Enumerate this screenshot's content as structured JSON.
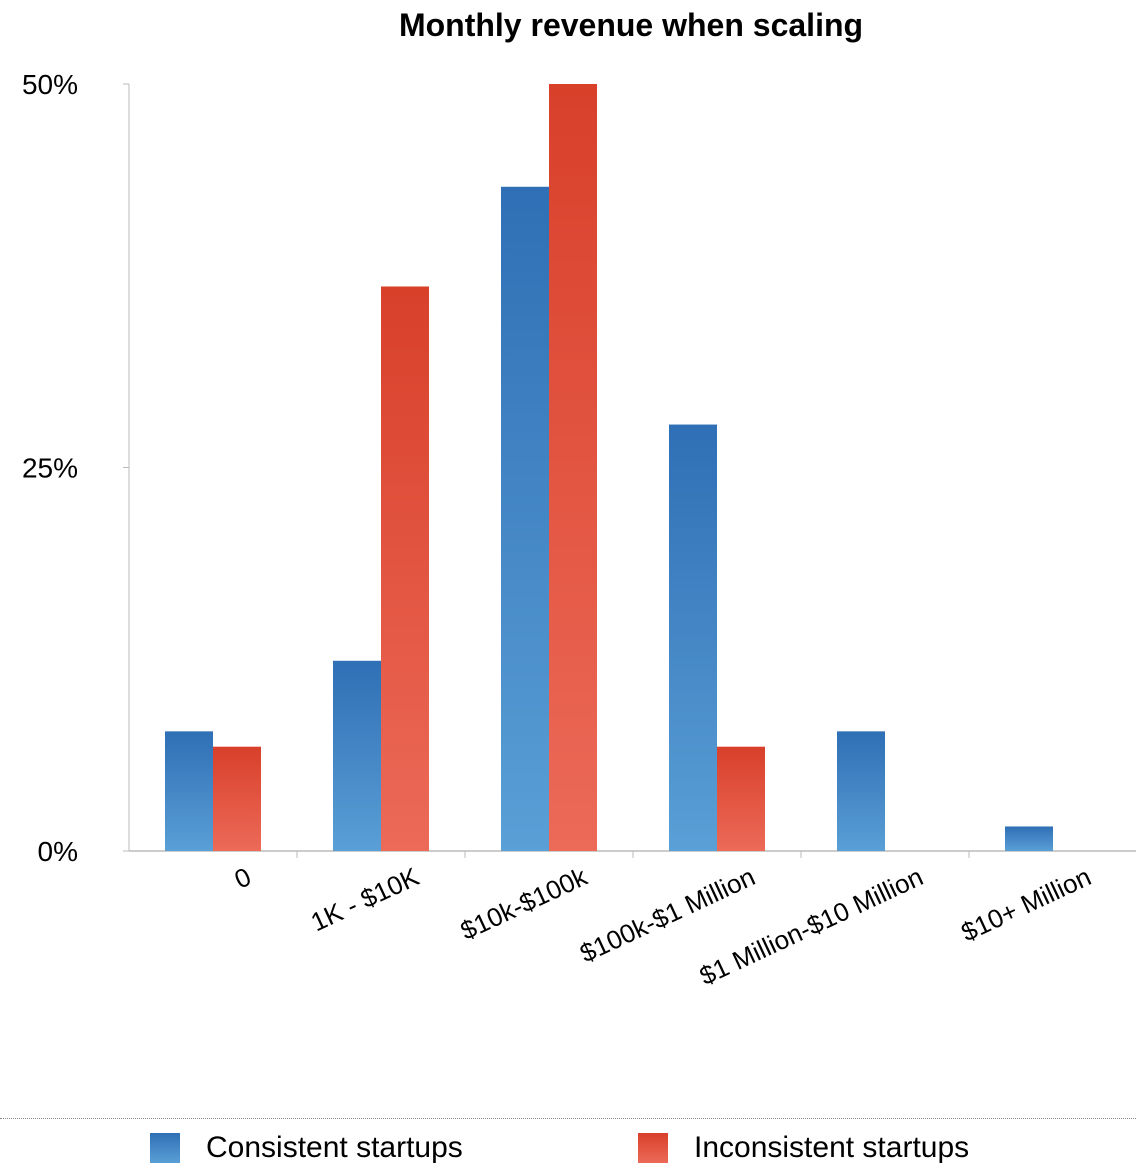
{
  "chart_data": {
    "type": "bar",
    "title": "Monthly revenue when scaling",
    "xlabel": "",
    "ylabel": "",
    "categories": [
      "0",
      "1K - $10K",
      "$10k-$100k",
      "$100k-$1 Million",
      "$1 Million-$10 Million",
      "$10+ Million"
    ],
    "series": [
      {
        "name": "Consistent startups",
        "color": "#3d85c6",
        "values": [
          7.8,
          12.4,
          43.3,
          27.8,
          7.8,
          1.6
        ]
      },
      {
        "name": "Inconsistent startups",
        "color": "#e0533c",
        "values": [
          6.8,
          36.8,
          50.0,
          6.8,
          0,
          0
        ]
      }
    ],
    "ylim": [
      0,
      50
    ],
    "yticks": [
      "0%",
      "25%",
      "50%"
    ],
    "ytick_values": [
      0,
      25,
      50
    ],
    "grid": false,
    "legend_position": "bottom"
  }
}
